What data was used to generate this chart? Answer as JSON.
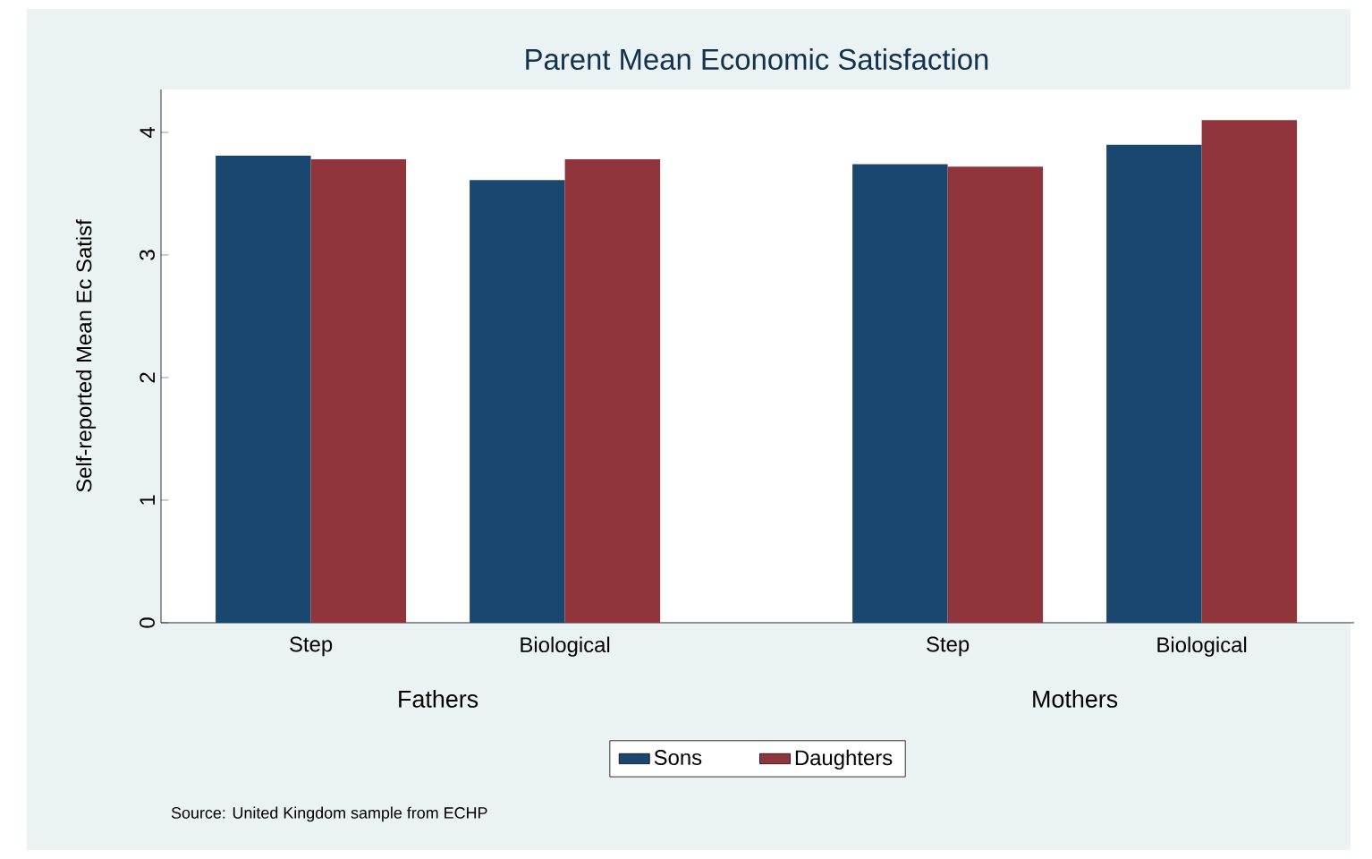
{
  "chart_data": {
    "type": "bar",
    "title": "Parent Mean Economic Satisfaction",
    "ylabel": "Self-reported Mean Ec Satisf",
    "categories": [
      "Step",
      "Biological",
      "Step",
      "Biological"
    ],
    "series": [
      {
        "name": "Sons",
        "color": "#1a476f",
        "values": [
          3.81,
          3.61,
          3.74,
          3.9
        ]
      },
      {
        "name": "Daughters",
        "color": "#90353b",
        "values": [
          3.78,
          3.78,
          3.72,
          4.1
        ]
      }
    ],
    "ylim": [
      0,
      4.35
    ],
    "yticks": [
      0,
      1,
      2,
      3,
      4
    ],
    "legend": "bottom",
    "grid": false,
    "annotations": [
      "Fathers",
      "Mothers",
      "Source: United Kingdom sample from ECHP"
    ]
  }
}
